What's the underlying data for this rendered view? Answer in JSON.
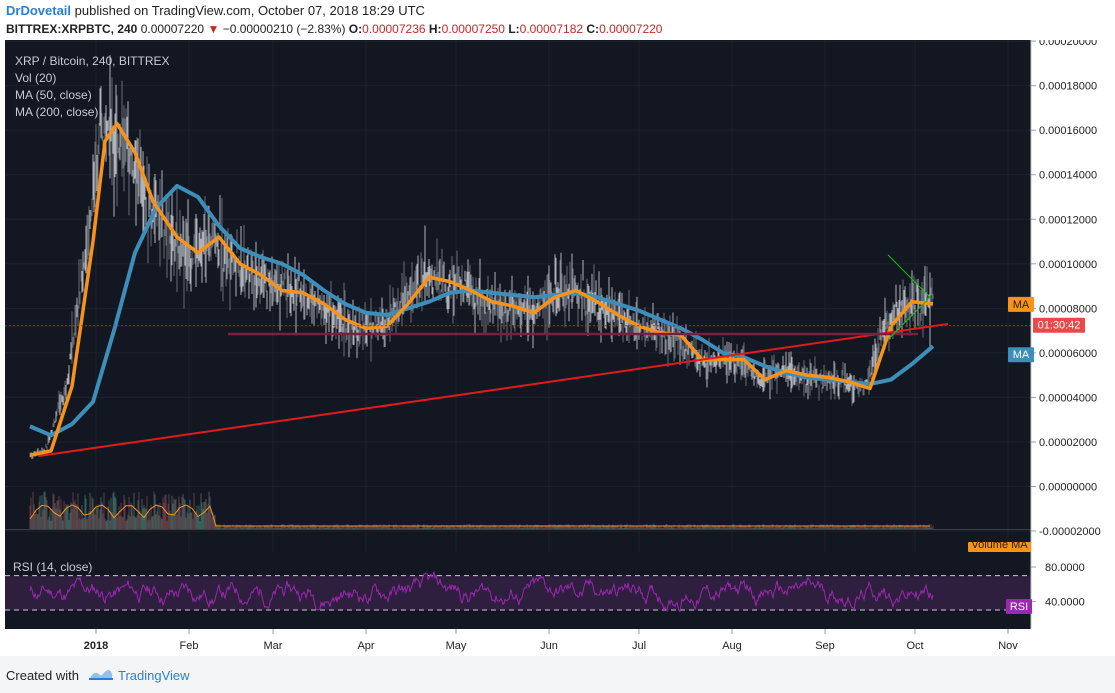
{
  "header": {
    "author": "DrDovetail",
    "published_text": "published on TradingView.com, October 07, 2018 18:29 UTC",
    "symbol": "BITTREX:XRPBTC, 240",
    "price": "0.00007220",
    "change_arrow": "▼",
    "change": "−0.00000210 (−2.83%)",
    "o_label": "O:",
    "o_value": "0.00007236",
    "h_label": "H:",
    "h_value": "0.00007250",
    "l_label": "L:",
    "l_value": "0.00007182",
    "c_label": "C:",
    "c_value": "0.00007220"
  },
  "legend": {
    "title": "XRP / Bitcoin, 240, BITTREX",
    "vol": "Vol (20)",
    "ma50": "MA (50, close)",
    "ma200": "MA (200, close)",
    "rsi": "RSI (14, close)"
  },
  "badges": {
    "ma50": "MA",
    "countdown": "01:30:42",
    "ma200": "MA",
    "volume_ma": "Volume MA",
    "rsi": "RSI"
  },
  "footer": {
    "created_with": "Created with",
    "brand": "TradingView"
  },
  "colors": {
    "background": "#131722",
    "ma50": "#f7931a",
    "ma200": "#3d8eb9",
    "trendline": "#e01b1b",
    "support": "#7a1f3d",
    "triangle": "#16c60c",
    "rsi": "#9c27b0",
    "rsi_band": "#2d1f3d"
  },
  "chart_data": [
    {
      "type": "line",
      "title": "XRP / Bitcoin, 240, BITTREX",
      "x_ticks": [
        "2018",
        "Feb",
        "Mar",
        "Apr",
        "May",
        "Jun",
        "Jul",
        "Aug",
        "Sep",
        "Oct",
        "Nov"
      ],
      "y_ticks": [
        "0.00020000",
        "0.00018000",
        "0.00016000",
        "0.00014000",
        "0.00012000",
        "0.00010000",
        "0.00008000",
        "0.00006000",
        "0.00004000",
        "0.00002000",
        "0.00000000",
        "-0.00002000"
      ],
      "ylim": [
        -2e-05,
        0.0002
      ],
      "current_price": 7.22e-05,
      "series": [
        {
          "name": "MA (50, close)",
          "x": [
            "2017-12-10",
            "2017-12-17",
            "2017-12-24",
            "2017-12-31",
            "2018-01-04",
            "2018-01-08",
            "2018-01-14",
            "2018-01-20",
            "2018-01-28",
            "2018-02-04",
            "2018-02-11",
            "2018-02-18",
            "2018-02-25",
            "2018-03-04",
            "2018-03-11",
            "2018-03-18",
            "2018-03-25",
            "2018-04-01",
            "2018-04-08",
            "2018-04-15",
            "2018-04-22",
            "2018-04-29",
            "2018-05-06",
            "2018-05-13",
            "2018-05-20",
            "2018-05-27",
            "2018-06-03",
            "2018-06-10",
            "2018-06-17",
            "2018-06-24",
            "2018-07-01",
            "2018-07-08",
            "2018-07-15",
            "2018-07-22",
            "2018-07-29",
            "2018-08-05",
            "2018-08-12",
            "2018-08-19",
            "2018-08-26",
            "2018-09-02",
            "2018-09-09",
            "2018-09-16",
            "2018-09-23",
            "2018-09-30",
            "2018-10-07"
          ],
          "values": [
            1.4e-05,
            1.6e-05,
            4.5e-05,
            0.00011,
            0.000155,
            0.000163,
            0.00015,
            0.000128,
            0.000112,
            0.000105,
            0.000112,
            0.0001,
            9.5e-05,
            8.8e-05,
            8.7e-05,
            8.2e-05,
            7.5e-05,
            7.1e-05,
            7.2e-05,
            8.2e-05,
            9.4e-05,
            9.2e-05,
            8.8e-05,
            8.3e-05,
            8.1e-05,
            7.8e-05,
            8.5e-05,
            8.8e-05,
            8.3e-05,
            7.7e-05,
            7.2e-05,
            6.9e-05,
            6.8e-05,
            5.7e-05,
            5.7e-05,
            5.7e-05,
            4.8e-05,
            5.2e-05,
            5e-05,
            4.9e-05,
            4.7e-05,
            4.4e-05,
            7.2e-05,
            8.3e-05,
            8.2e-05
          ]
        },
        {
          "name": "MA (200, close)",
          "x": [
            "2017-12-10",
            "2017-12-17",
            "2017-12-24",
            "2017-12-31",
            "2018-01-07",
            "2018-01-14",
            "2018-01-21",
            "2018-01-28",
            "2018-02-04",
            "2018-02-11",
            "2018-02-18",
            "2018-02-25",
            "2018-03-04",
            "2018-03-11",
            "2018-03-18",
            "2018-03-25",
            "2018-04-01",
            "2018-04-08",
            "2018-04-15",
            "2018-04-22",
            "2018-04-29",
            "2018-05-06",
            "2018-05-13",
            "2018-05-20",
            "2018-05-27",
            "2018-06-03",
            "2018-06-10",
            "2018-06-17",
            "2018-06-24",
            "2018-07-01",
            "2018-07-08",
            "2018-07-15",
            "2018-07-22",
            "2018-07-29",
            "2018-08-05",
            "2018-08-12",
            "2018-08-19",
            "2018-08-26",
            "2018-09-02",
            "2018-09-09",
            "2018-09-16",
            "2018-09-23",
            "2018-09-30",
            "2018-10-07"
          ],
          "values": [
            2.7e-05,
            2.3e-05,
            2.8e-05,
            3.8e-05,
            7e-05,
            0.000105,
            0.000125,
            0.000135,
            0.00013,
            0.000117,
            0.000107,
            0.000103,
            0.0001,
            9.5e-05,
            8.8e-05,
            8.2e-05,
            7.8e-05,
            7.7e-05,
            8e-05,
            8.3e-05,
            8.7e-05,
            8.8e-05,
            8.7e-05,
            8.6e-05,
            8.5e-05,
            8.6e-05,
            8.7e-05,
            8.5e-05,
            8.2e-05,
            7.9e-05,
            7.5e-05,
            7.1e-05,
            6.6e-05,
            6e-05,
            5.8e-05,
            5.4e-05,
            5.1e-05,
            4.9e-05,
            4.8e-05,
            4.7e-05,
            4.6e-05,
            4.8e-05,
            5.5e-05,
            6.3e-05
          ]
        }
      ]
    },
    {
      "type": "line",
      "title": "RSI (14, close)",
      "y_ticks": [
        "80.0000",
        "40.0000"
      ],
      "ylim": [
        10,
        95
      ],
      "bands": [
        70,
        30
      ]
    }
  ]
}
